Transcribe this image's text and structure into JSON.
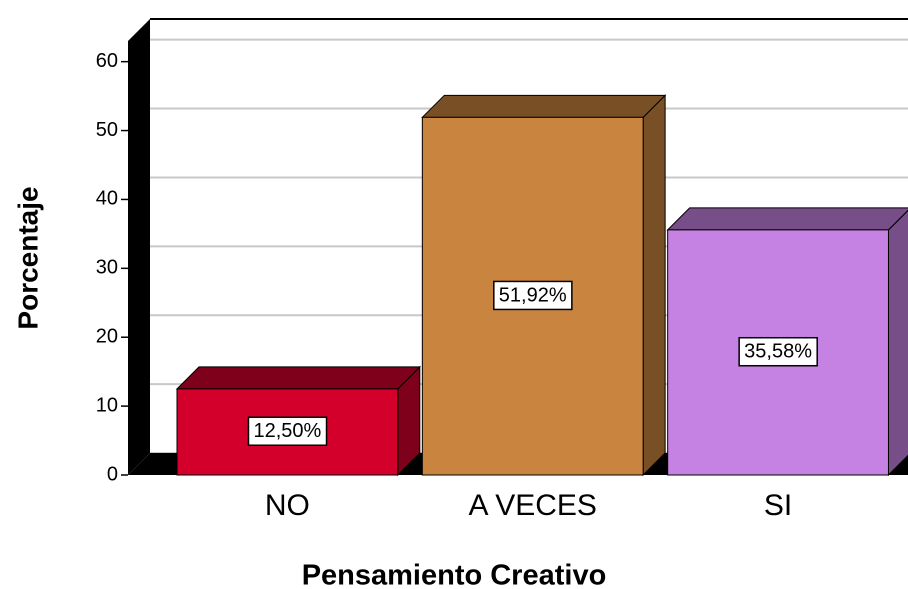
{
  "chart_data": {
    "type": "bar3d",
    "x_label": "Pensamiento Creativo",
    "y_label": "Porcentaje",
    "categories": [
      "NO",
      "A VECES",
      "SI"
    ],
    "values": [
      12.5,
      51.92,
      35.58
    ],
    "value_labels": [
      "12,50%",
      "51,92%",
      "35,58%"
    ],
    "colors": [
      "#d2002b",
      "#c98440",
      "#c682e2"
    ],
    "ylim": [
      0,
      63
    ],
    "yticks": [
      0,
      10,
      20,
      30,
      40,
      50,
      60
    ],
    "grid": true
  }
}
